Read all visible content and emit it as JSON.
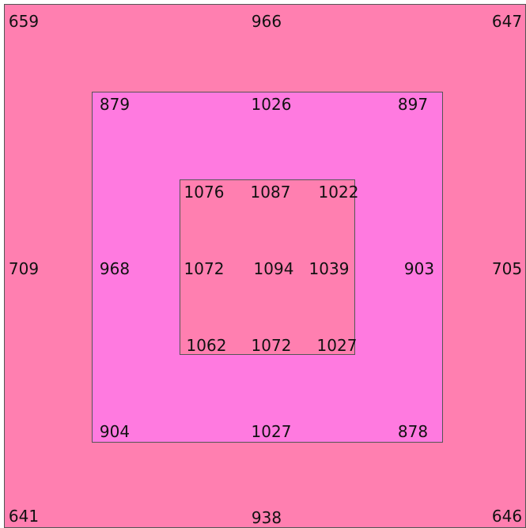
{
  "colors": {
    "outer_fill": "#ff7fb0",
    "middle_fill": "#ff7ae0",
    "inner_fill": "#ff7fb0",
    "border": "#555555"
  },
  "outer": {
    "top_left": "659",
    "top_center": "966",
    "top_right": "647",
    "middle_left": "709",
    "middle_right": "705",
    "bottom_left": "641",
    "bottom_center": "938",
    "bottom_right": "646"
  },
  "middle": {
    "top_left": "879",
    "top_center": "1026",
    "top_right": "897",
    "middle_left": "968",
    "middle_right": "903",
    "bottom_left": "904",
    "bottom_center": "1027",
    "bottom_right": "878"
  },
  "inner": {
    "top_left": "1076",
    "top_center": "1087",
    "top_right": "1022",
    "middle_left": "1072",
    "center": "1094",
    "middle_right": "1039",
    "bottom_left": "1062",
    "bottom_center": "1072",
    "bottom_right": "1027"
  }
}
